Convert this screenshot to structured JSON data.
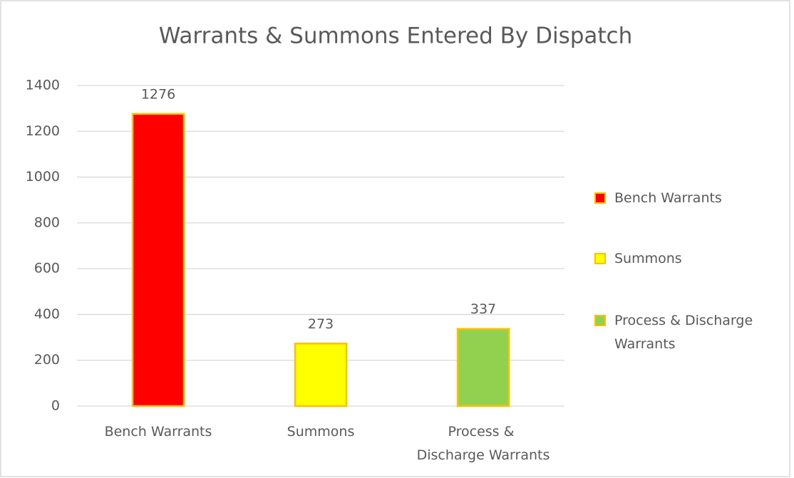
{
  "chart_data": {
    "type": "bar",
    "title": "Warrants & Summons Entered By Dispatch",
    "categories": [
      "Bench Warrants",
      "Summons",
      "Process & Discharge Warrants"
    ],
    "values": [
      1276,
      273,
      337
    ],
    "colors": [
      "#ff0000",
      "#ffff00",
      "#92d050"
    ],
    "edge_color": "#ffc000",
    "ylim": [
      0,
      1400
    ],
    "yticks": [
      0,
      200,
      400,
      600,
      800,
      1000,
      1200,
      1400
    ],
    "grid": true,
    "legend": "right"
  }
}
